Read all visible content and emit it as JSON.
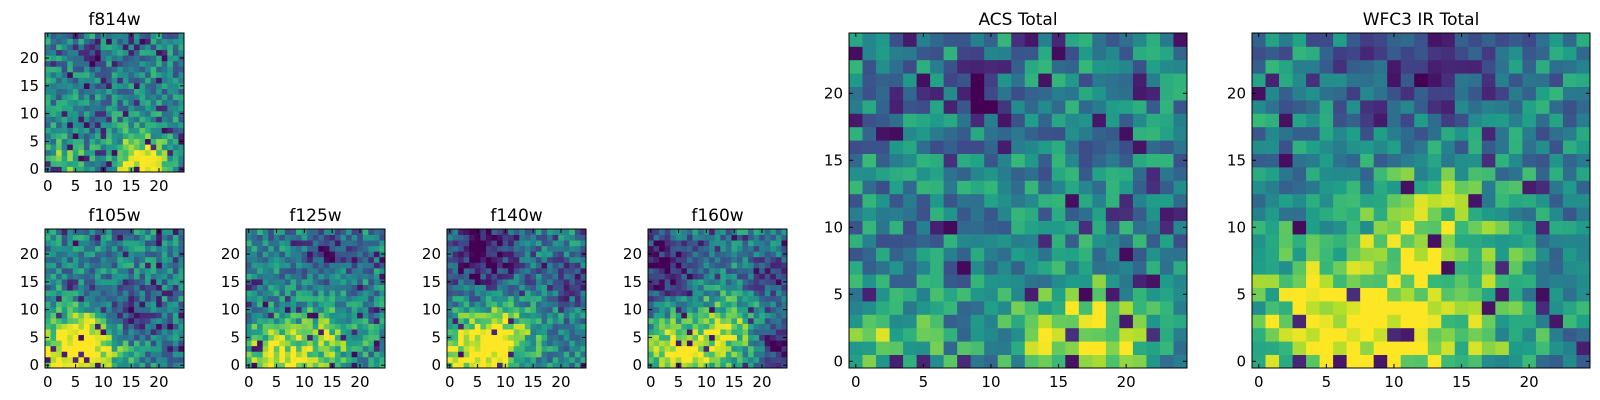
{
  "chart_data": [
    {
      "type": "heatmap",
      "title": "f814w",
      "x_ticks": [
        0,
        5,
        10,
        15,
        20
      ],
      "y_ticks": [
        0,
        5,
        10,
        15,
        20
      ],
      "xlim": [
        -0.5,
        24.5
      ],
      "ylim": [
        -0.5,
        24.5
      ],
      "grid": false,
      "colormap": "viridis",
      "pattern": {
        "seed": 11,
        "bright_zones": [
          [
            17,
            1,
            3.5,
            0.62
          ],
          [
            3,
            1,
            2.5,
            0.35
          ]
        ],
        "dark_zones": [
          [
            8,
            20,
            1.2,
            0.5
          ]
        ],
        "dark_prob": 0.1
      }
    },
    {
      "type": "heatmap",
      "title": "f105w",
      "x_ticks": [
        0,
        5,
        10,
        15,
        20
      ],
      "y_ticks": [
        0,
        5,
        10,
        15,
        20
      ],
      "xlim": [
        -0.5,
        24.5
      ],
      "ylim": [
        -0.5,
        24.5
      ],
      "grid": false,
      "colormap": "viridis",
      "pattern": {
        "seed": 23,
        "bright_zones": [
          [
            4,
            1,
            5,
            0.6
          ],
          [
            8,
            5,
            3.5,
            0.35
          ]
        ],
        "dark_zones": [
          [
            15,
            10,
            3,
            0.3
          ]
        ],
        "dark_prob": 0.07
      }
    },
    {
      "type": "heatmap",
      "title": "f125w",
      "x_ticks": [
        0,
        5,
        10,
        15,
        20
      ],
      "y_ticks": [
        0,
        5,
        10,
        15,
        20
      ],
      "xlim": [
        -0.5,
        24.5
      ],
      "ylim": [
        -0.5,
        24.5
      ],
      "grid": false,
      "colormap": "viridis",
      "pattern": {
        "seed": 37,
        "bright_zones": [
          [
            5,
            1,
            4.5,
            0.5
          ],
          [
            15,
            5,
            4,
            0.3
          ]
        ],
        "dark_zones": [
          [
            14,
            20,
            3,
            0.3
          ]
        ],
        "dark_prob": 0.06
      }
    },
    {
      "type": "heatmap",
      "title": "f140w",
      "x_ticks": [
        0,
        5,
        10,
        15,
        20
      ],
      "y_ticks": [
        0,
        5,
        10,
        15,
        20
      ],
      "xlim": [
        -0.5,
        24.5
      ],
      "ylim": [
        -0.5,
        24.5
      ],
      "grid": false,
      "colormap": "viridis",
      "pattern": {
        "seed": 41,
        "bright_zones": [
          [
            5,
            2,
            5,
            0.55
          ],
          [
            10,
            6,
            4,
            0.3
          ]
        ],
        "dark_zones": [
          [
            6,
            20,
            5,
            0.45
          ],
          [
            22,
            15,
            3,
            0.3
          ]
        ],
        "dark_prob": 0.05
      }
    },
    {
      "type": "heatmap",
      "title": "f160w",
      "x_ticks": [
        0,
        5,
        10,
        15,
        20
      ],
      "y_ticks": [
        0,
        5,
        10,
        15,
        20
      ],
      "xlim": [
        -0.5,
        24.5
      ],
      "ylim": [
        -0.5,
        24.5
      ],
      "grid": false,
      "colormap": "viridis",
      "pattern": {
        "seed": 53,
        "bright_zones": [
          [
            5,
            2,
            4,
            0.55
          ],
          [
            14,
            6,
            5,
            0.35
          ]
        ],
        "dark_zones": [
          [
            3,
            18,
            4,
            0.45
          ],
          [
            23,
            4,
            3,
            0.45
          ],
          [
            21,
            16,
            3,
            0.3
          ]
        ],
        "dark_prob": 0.05
      }
    },
    {
      "type": "heatmap",
      "title": "ACS Total",
      "x_ticks": [
        0,
        5,
        10,
        15,
        20
      ],
      "y_ticks": [
        0,
        5,
        10,
        15,
        20
      ],
      "xlim": [
        -0.5,
        24.5
      ],
      "ylim": [
        -0.5,
        24.5
      ],
      "grid": false,
      "colormap": "viridis",
      "pattern": {
        "seed": 67,
        "bright_zones": [
          [
            17,
            1,
            3.5,
            0.55
          ],
          [
            2,
            1,
            3,
            0.3
          ]
        ],
        "dark_zones": [
          [
            9,
            20,
            1.3,
            0.6
          ]
        ],
        "dark_prob": 0.07
      }
    },
    {
      "type": "heatmap",
      "title": "WFC3 IR Total",
      "x_ticks": [
        0,
        5,
        10,
        15,
        20
      ],
      "y_ticks": [
        0,
        5,
        10,
        15,
        20
      ],
      "xlim": [
        -0.5,
        24.5
      ],
      "ylim": [
        -0.5,
        24.5
      ],
      "grid": false,
      "colormap": "viridis",
      "pattern": {
        "seed": 79,
        "bright_zones": [
          [
            5,
            2,
            5,
            0.45
          ],
          [
            13,
            4,
            5,
            0.35
          ],
          [
            13,
            12,
            3,
            0.2
          ]
        ],
        "dark_zones": [
          [
            12,
            22,
            4,
            0.25
          ]
        ],
        "dark_prob": 0.06
      }
    }
  ]
}
